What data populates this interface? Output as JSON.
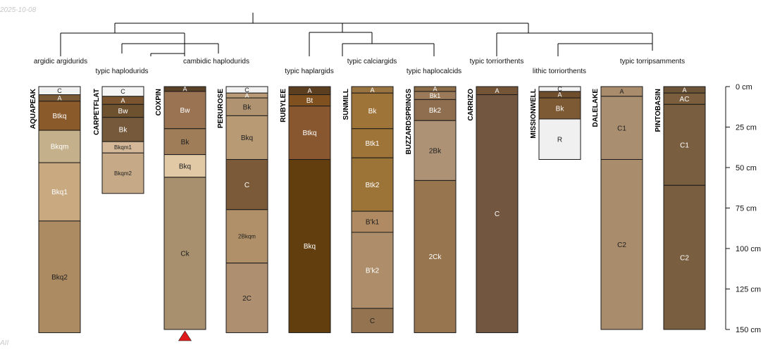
{
  "date_stamp": "2025-10-08",
  "corner_mark": "AII",
  "colors": {
    "tree": "#000000",
    "horizon_border": "#1a1a1a",
    "truncation_marker": "#e0191a"
  },
  "taxa": [
    {
      "name": "argidic argidurids",
      "row": "upper"
    },
    {
      "name": "typic haplodurids",
      "row": "lower"
    },
    {
      "name": "cambidic haplodurids",
      "row": "upper"
    },
    {
      "name": "typic haplargids",
      "row": "lower"
    },
    {
      "name": "typic calciargids",
      "row": "upper"
    },
    {
      "name": "typic haplocalcids",
      "row": "lower"
    },
    {
      "name": "typic torriorthents",
      "row": "upper"
    },
    {
      "name": "lithic torriorthents",
      "row": "lower"
    },
    {
      "name": "typic torripsamments",
      "row": "upper"
    }
  ],
  "depth_axis": {
    "max_cm": 150,
    "unit": "cm",
    "ticks": [
      {
        "value": 0,
        "label": "0 cm"
      },
      {
        "value": 25,
        "label": "25 cm"
      },
      {
        "value": 50,
        "label": "50 cm"
      },
      {
        "value": 75,
        "label": "75 cm"
      },
      {
        "value": 100,
        "label": "100 cm"
      },
      {
        "value": 125,
        "label": "125 cm"
      },
      {
        "value": 150,
        "label": "150 cm"
      }
    ]
  },
  "profiles": [
    {
      "name": "AQUAPEAK",
      "truncated": false,
      "horizons": [
        {
          "name": "C",
          "top": 0,
          "bottom": 5,
          "color": "#f2f2f2",
          "text": "dark"
        },
        {
          "name": "A",
          "top": 5,
          "bottom": 9,
          "color": "#7a5a36",
          "text": "light"
        },
        {
          "name": "Btkq",
          "top": 9,
          "bottom": 27,
          "color": "#8a5a2a",
          "text": "light"
        },
        {
          "name": "Bkqm",
          "top": 27,
          "bottom": 47,
          "color": "#c4b08a",
          "text": "light"
        },
        {
          "name": "Bkq1",
          "top": 47,
          "bottom": 83,
          "color": "#c8a980",
          "text": "light"
        },
        {
          "name": "Bkq2",
          "top": 83,
          "bottom": 152,
          "color": "#ac8a62",
          "text": "dark"
        }
      ]
    },
    {
      "name": "CARPETFLAT",
      "truncated": false,
      "horizons": [
        {
          "name": "C",
          "top": 0,
          "bottom": 6,
          "color": "#f5f5f5",
          "text": "dark"
        },
        {
          "name": "A",
          "top": 6,
          "bottom": 11,
          "color": "#7a5530",
          "text": "light"
        },
        {
          "name": "Bw",
          "top": 11,
          "bottom": 19,
          "color": "#6e5230",
          "text": "light"
        },
        {
          "name": "Bk",
          "top": 19,
          "bottom": 34,
          "color": "#75593a",
          "text": "light"
        },
        {
          "name": "Bkqm1",
          "top": 34,
          "bottom": 41,
          "color": "#d4b898",
          "text": "dark"
        },
        {
          "name": "Bkqm2",
          "top": 41,
          "bottom": 66,
          "color": "#c6a987",
          "text": "dark"
        }
      ]
    },
    {
      "name": "COXPIN",
      "truncated": true,
      "horizons": [
        {
          "name": "A",
          "top": 0,
          "bottom": 3,
          "color": "#5a4228",
          "text": "light"
        },
        {
          "name": "Bw",
          "top": 3,
          "bottom": 26,
          "color": "#9a7452",
          "text": "light"
        },
        {
          "name": "Bk",
          "top": 26,
          "bottom": 42,
          "color": "#9e7d58",
          "text": "dark"
        },
        {
          "name": "Bkq",
          "top": 42,
          "bottom": 56,
          "color": "#e2c9a6",
          "text": "dark"
        },
        {
          "name": "Ck",
          "top": 56,
          "bottom": 150,
          "color": "#a8906e",
          "text": "dark"
        }
      ]
    },
    {
      "name": "PERUROSE",
      "truncated": false,
      "horizons": [
        {
          "name": "C",
          "top": 0,
          "bottom": 4,
          "color": "#f2f2f2",
          "text": "dark"
        },
        {
          "name": "A",
          "top": 4,
          "bottom": 7,
          "color": "#b89a76",
          "text": "light"
        },
        {
          "name": "Bk",
          "top": 7,
          "bottom": 18,
          "color": "#b09370",
          "text": "dark"
        },
        {
          "name": "Bkq",
          "top": 18,
          "bottom": 45,
          "color": "#b89a74",
          "text": "dark"
        },
        {
          "name": "C",
          "top": 45,
          "bottom": 76,
          "color": "#7a5a38",
          "text": "light"
        },
        {
          "name": "2Bkqm",
          "top": 76,
          "bottom": 109,
          "color": "#b09068",
          "text": "dark"
        },
        {
          "name": "2C",
          "top": 109,
          "bottom": 152,
          "color": "#ae9070",
          "text": "dark"
        }
      ]
    },
    {
      "name": "RUBYLEE",
      "truncated": false,
      "horizons": [
        {
          "name": "A",
          "top": 0,
          "bottom": 5,
          "color": "#5c3e20",
          "text": "light"
        },
        {
          "name": "Bt",
          "top": 5,
          "bottom": 12,
          "color": "#80501f",
          "text": "light"
        },
        {
          "name": "Btkq",
          "top": 12,
          "bottom": 45,
          "color": "#885730",
          "text": "light"
        },
        {
          "name": "Bkq",
          "top": 45,
          "bottom": 152,
          "color": "#623e0e",
          "text": "light"
        }
      ]
    },
    {
      "name": "SUNMILL",
      "truncated": false,
      "horizons": [
        {
          "name": "A",
          "top": 0,
          "bottom": 4,
          "color": "#9a7440",
          "text": "light"
        },
        {
          "name": "Bk",
          "top": 4,
          "bottom": 26,
          "color": "#9e7438",
          "text": "light"
        },
        {
          "name": "Btk1",
          "top": 26,
          "bottom": 44,
          "color": "#9e7438",
          "text": "light"
        },
        {
          "name": "Btk2",
          "top": 44,
          "bottom": 77,
          "color": "#9c7438",
          "text": "light"
        },
        {
          "name": "B'k1",
          "top": 77,
          "bottom": 90,
          "color": "#b08a62",
          "text": "dark"
        },
        {
          "name": "B'k2",
          "top": 90,
          "bottom": 137,
          "color": "#ae8e6a",
          "text": "light"
        },
        {
          "name": "C",
          "top": 137,
          "bottom": 152,
          "color": "#947450",
          "text": "dark"
        }
      ]
    },
    {
      "name": "BUZZARDSPRINGS",
      "truncated": false,
      "horizons": [
        {
          "name": "A",
          "top": 0,
          "bottom": 3,
          "color": "#8c6c46",
          "text": "light"
        },
        {
          "name": "Bk1",
          "top": 3,
          "bottom": 8,
          "color": "#9a7a58",
          "text": "light"
        },
        {
          "name": "Bk2",
          "top": 8,
          "bottom": 21,
          "color": "#8e6e4e",
          "text": "light"
        },
        {
          "name": "2Bk",
          "top": 21,
          "bottom": 58,
          "color": "#ad9276",
          "text": "dark"
        },
        {
          "name": "2Ck",
          "top": 58,
          "bottom": 152,
          "color": "#97754f",
          "text": "light"
        }
      ]
    },
    {
      "name": "CARRIZO",
      "truncated": false,
      "horizons": [
        {
          "name": "A",
          "top": 0,
          "bottom": 5,
          "color": "#735436",
          "text": "light"
        },
        {
          "name": "C",
          "top": 5,
          "bottom": 152,
          "color": "#735640",
          "text": "light"
        }
      ]
    },
    {
      "name": "MISSIONWELL",
      "truncated": false,
      "horizons": [
        {
          "name": "C",
          "top": 0,
          "bottom": 3,
          "color": "#f2f2f2",
          "text": "dark"
        },
        {
          "name": "A",
          "top": 3,
          "bottom": 7,
          "color": "#6e4e2c",
          "text": "light"
        },
        {
          "name": "Bk",
          "top": 7,
          "bottom": 20,
          "color": "#7e5a34",
          "text": "light"
        },
        {
          "name": "R",
          "top": 20,
          "bottom": 45,
          "color": "#f0f0f0",
          "text": "dark"
        }
      ]
    },
    {
      "name": "DALELAKE",
      "truncated": false,
      "horizons": [
        {
          "name": "A",
          "top": 0,
          "bottom": 6,
          "color": "#a88c6c",
          "text": "dark"
        },
        {
          "name": "C1",
          "top": 6,
          "bottom": 45,
          "color": "#aa8e70",
          "text": "dark"
        },
        {
          "name": "C2",
          "top": 45,
          "bottom": 150,
          "color": "#a88c6c",
          "text": "dark"
        }
      ]
    },
    {
      "name": "PINTOBASIN",
      "truncated": false,
      "horizons": [
        {
          "name": "A",
          "top": 0,
          "bottom": 4,
          "color": "#6e5436",
          "text": "light"
        },
        {
          "name": "AC",
          "top": 4,
          "bottom": 11,
          "color": "#7a5e3e",
          "text": "light"
        },
        {
          "name": "C1",
          "top": 11,
          "bottom": 61,
          "color": "#7a5e40",
          "text": "light"
        },
        {
          "name": "C2",
          "top": 61,
          "bottom": 150,
          "color": "#7a5e40",
          "text": "light"
        }
      ]
    }
  ]
}
